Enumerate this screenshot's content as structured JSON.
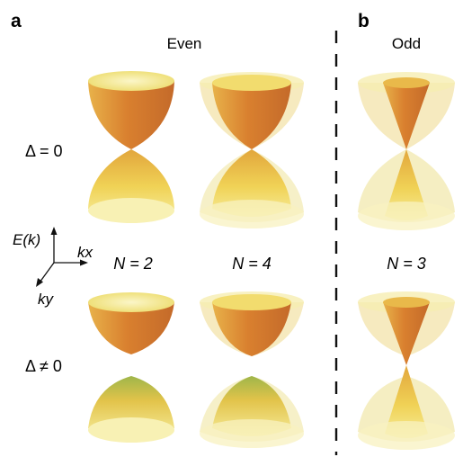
{
  "panels": {
    "a": {
      "letter": "a",
      "title": "Even"
    },
    "b": {
      "letter": "b",
      "title": "Odd"
    }
  },
  "rows": {
    "gapless": {
      "label": "Δ = 0"
    },
    "gapped": {
      "label": "Δ ≠ 0"
    }
  },
  "axes": {
    "energy_label": "E(k)",
    "kx_label": "kx",
    "ky_label": "ky"
  },
  "columns": [
    {
      "id": "n2",
      "label": "N = 2"
    },
    {
      "id": "n4",
      "label": "N = 4"
    },
    {
      "id": "n3",
      "label": "N = 3"
    }
  ],
  "colors": {
    "outer_rim": "#f4ec9a",
    "inner_face": "#d6802f",
    "bright_face": "#f2d35a",
    "divider": "#111111"
  }
}
